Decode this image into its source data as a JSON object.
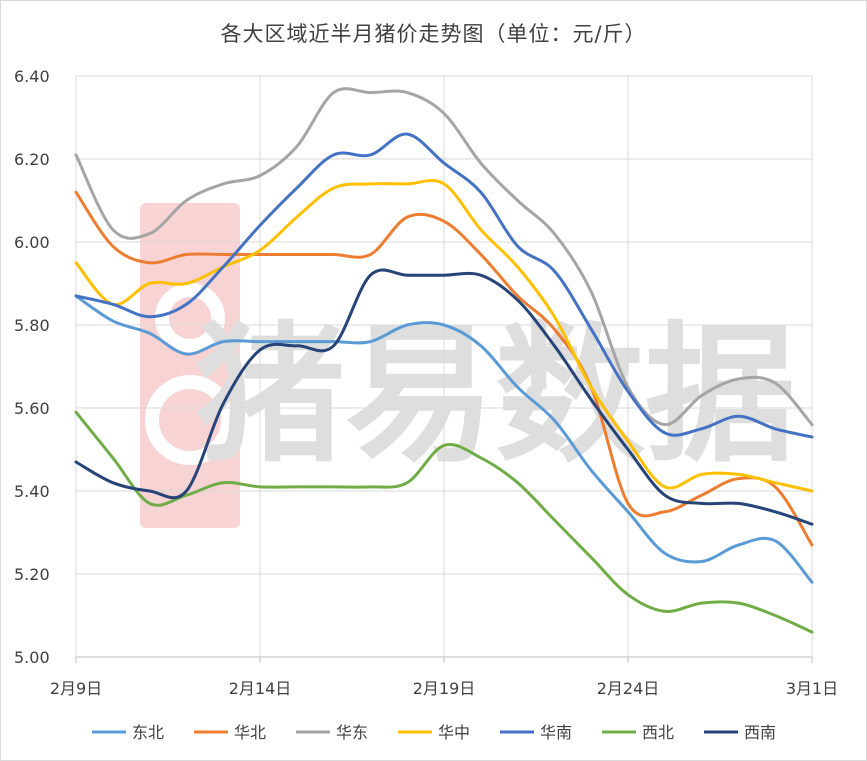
{
  "chart_data": {
    "type": "line",
    "title": "各大区域近半月猪价走势图（单位：元/斤）",
    "xlabel": "",
    "ylabel": "",
    "ylim": [
      5.0,
      6.4
    ],
    "yticks": [
      "5.00",
      "5.20",
      "5.40",
      "5.60",
      "5.80",
      "6.00",
      "6.20",
      "6.40"
    ],
    "xticks": [
      "2月9日",
      "2月14日",
      "2月19日",
      "2月24日",
      "3月1日"
    ],
    "x": [
      "2月9日",
      "2月10日",
      "2月11日",
      "2月12日",
      "2月13日",
      "2月14日",
      "2月15日",
      "2月16日",
      "2月17日",
      "2月18日",
      "2月19日",
      "2月20日",
      "2月21日",
      "2月22日",
      "2月23日",
      "2月24日",
      "2月25日",
      "2月26日",
      "2月27日",
      "2月28日",
      "3月1日"
    ],
    "grid": true,
    "legend_position": "bottom",
    "watermark": "猪易数据",
    "series": [
      {
        "name": "东北",
        "color": "#5b9bd5",
        "values": [
          5.87,
          5.81,
          5.78,
          5.73,
          5.76,
          5.76,
          5.76,
          5.76,
          5.76,
          5.8,
          5.8,
          5.75,
          5.65,
          5.57,
          5.45,
          5.35,
          5.25,
          5.23,
          5.27,
          5.28,
          5.18
        ]
      },
      {
        "name": "华北",
        "color": "#ed7d31",
        "values": [
          6.12,
          5.99,
          5.95,
          5.97,
          5.97,
          5.97,
          5.97,
          5.97,
          5.97,
          6.06,
          6.05,
          5.97,
          5.87,
          5.79,
          5.65,
          5.37,
          5.35,
          5.39,
          5.43,
          5.41,
          5.27
        ]
      },
      {
        "name": "华东",
        "color": "#a5a5a5",
        "values": [
          6.21,
          6.03,
          6.02,
          6.1,
          6.14,
          6.16,
          6.23,
          6.36,
          6.36,
          6.36,
          6.31,
          6.19,
          6.1,
          6.02,
          5.88,
          5.65,
          5.56,
          5.63,
          5.67,
          5.66,
          5.56
        ]
      },
      {
        "name": "华中",
        "color": "#ffc000",
        "values": [
          5.95,
          5.85,
          5.9,
          5.9,
          5.94,
          5.98,
          6.06,
          6.13,
          6.14,
          6.14,
          6.14,
          6.03,
          5.94,
          5.82,
          5.65,
          5.52,
          5.41,
          5.44,
          5.44,
          5.42,
          5.4
        ]
      },
      {
        "name": "华南",
        "color": "#4472c4",
        "values": [
          5.87,
          5.85,
          5.82,
          5.85,
          5.94,
          6.04,
          6.13,
          6.21,
          6.21,
          6.26,
          6.19,
          6.12,
          5.99,
          5.93,
          5.79,
          5.64,
          5.54,
          5.55,
          5.58,
          5.55,
          5.53
        ]
      },
      {
        "name": "西北",
        "color": "#70ad47",
        "values": [
          5.59,
          5.48,
          5.37,
          5.39,
          5.42,
          5.41,
          5.41,
          5.41,
          5.41,
          5.42,
          5.51,
          5.48,
          5.42,
          5.33,
          5.24,
          5.15,
          5.11,
          5.13,
          5.13,
          5.1,
          5.06
        ]
      },
      {
        "name": "西南",
        "color": "#264478",
        "values": [
          5.47,
          5.42,
          5.4,
          5.4,
          5.61,
          5.74,
          5.75,
          5.75,
          5.92,
          5.92,
          5.92,
          5.92,
          5.86,
          5.75,
          5.62,
          5.5,
          5.39,
          5.37,
          5.37,
          5.35,
          5.32
        ]
      }
    ]
  }
}
